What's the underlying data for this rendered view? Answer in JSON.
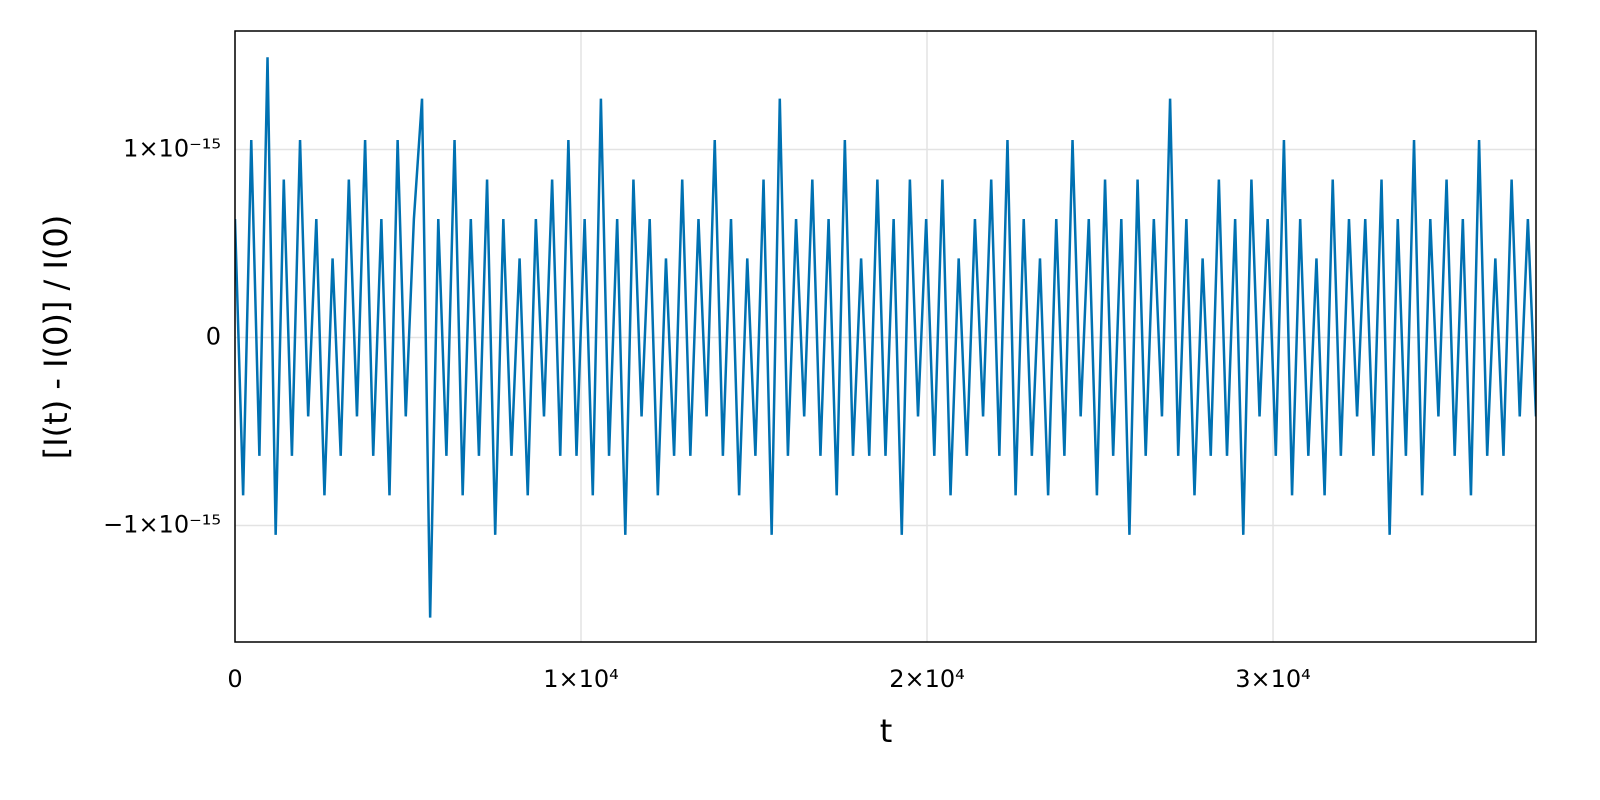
{
  "chart_data": {
    "type": "line",
    "xlabel": "t",
    "ylabel": "[I(t) - I(0)] / I(0)",
    "xlim": [
      0,
      37600
    ],
    "ylim": [
      -1.62e-15,
      1.63e-15
    ],
    "xticks": [
      0,
      {
        "value": 10000,
        "label": "1×10⁴"
      },
      {
        "value": 20000,
        "label": "2×10⁴"
      },
      {
        "value": 30000,
        "label": "3×10⁴"
      }
    ],
    "yticks": [
      {
        "value": -1e-15,
        "label": "−1×10⁻¹⁵"
      },
      0,
      {
        "value": 1e-15,
        "label": "1×10⁻¹⁵"
      }
    ],
    "grid": true,
    "x": [
      0,
      235,
      470,
      705,
      940,
      1175,
      1410,
      1645,
      1880,
      2115,
      2350,
      2585,
      2820,
      3055,
      3290,
      3525,
      3760,
      3995,
      4230,
      4465,
      4700,
      4935,
      5170,
      5405,
      5640,
      5875,
      6110,
      6345,
      6580,
      6815,
      7050,
      7285,
      7520,
      7755,
      7990,
      8225,
      8460,
      8695,
      8930,
      9165,
      9400,
      9635,
      9870,
      10105,
      10340,
      10575,
      10810,
      11045,
      11280,
      11515,
      11750,
      11985,
      12220,
      12455,
      12690,
      12925,
      13160,
      13395,
      13630,
      13865,
      14100,
      14335,
      14570,
      14805,
      15040,
      15275,
      15510,
      15745,
      15980,
      16215,
      16450,
      16685,
      16920,
      17155,
      17390,
      17625,
      17860,
      18095,
      18330,
      18565,
      18800,
      19035,
      19270,
      19505,
      19740,
      19975,
      20210,
      20445,
      20680,
      20915,
      21150,
      21385,
      21620,
      21855,
      22090,
      22325,
      22560,
      22795,
      23030,
      23265,
      23500,
      23735,
      23970,
      24205,
      24440,
      24675,
      24910,
      25145,
      25380,
      25615,
      25850,
      26085,
      26320,
      26555,
      26790,
      27025,
      27260,
      27495,
      27730,
      27965,
      28200,
      28435,
      28670,
      28905,
      29140,
      29375,
      29610,
      29845,
      30080,
      30315,
      30550,
      30785,
      31020,
      31255,
      31490,
      31725,
      31960,
      32195,
      32430,
      32665,
      32900,
      33135,
      33370,
      33605,
      33840,
      34075,
      34310,
      34545,
      34780,
      35015,
      35250,
      35485,
      35720,
      35955,
      36190,
      36425,
      36660,
      36895,
      37130,
      37365,
      37600
    ],
    "series": [
      {
        "color": "#0071b2",
        "values": [
          6.3e-16,
          -8.4e-16,
          1.05e-15,
          -6.3e-16,
          1.49e-15,
          -1.05e-15,
          8.4e-16,
          -6.3e-16,
          1.05e-15,
          -4.2e-16,
          6.3e-16,
          -8.4e-16,
          4.2e-16,
          -6.3e-16,
          8.4e-16,
          -4.2e-16,
          1.05e-15,
          -6.3e-16,
          6.3e-16,
          -8.4e-16,
          1.05e-15,
          -4.2e-16,
          6.3e-16,
          1.27e-15,
          -1.49e-15,
          6.3e-16,
          -6.3e-16,
          1.05e-15,
          -8.4e-16,
          6.3e-16,
          -6.3e-16,
          8.4e-16,
          -1.05e-15,
          6.3e-16,
          -6.3e-16,
          4.2e-16,
          -8.4e-16,
          6.3e-16,
          -4.2e-16,
          8.4e-16,
          -6.3e-16,
          1.05e-15,
          -6.3e-16,
          6.3e-16,
          -8.4e-16,
          1.27e-15,
          -6.3e-16,
          6.3e-16,
          -1.05e-15,
          8.4e-16,
          -4.2e-16,
          6.3e-16,
          -8.4e-16,
          4.2e-16,
          -6.3e-16,
          8.4e-16,
          -6.3e-16,
          6.3e-16,
          -4.2e-16,
          1.05e-15,
          -6.3e-16,
          6.3e-16,
          -8.4e-16,
          4.2e-16,
          -6.3e-16,
          8.4e-16,
          -1.05e-15,
          1.27e-15,
          -6.3e-16,
          6.3e-16,
          -4.2e-16,
          8.4e-16,
          -6.3e-16,
          6.3e-16,
          -8.4e-16,
          1.05e-15,
          -6.3e-16,
          4.2e-16,
          -6.3e-16,
          8.4e-16,
          -6.3e-16,
          6.3e-16,
          -1.05e-15,
          8.4e-16,
          -4.2e-16,
          6.3e-16,
          -6.3e-16,
          8.4e-16,
          -8.4e-16,
          4.2e-16,
          -6.3e-16,
          6.3e-16,
          -4.2e-16,
          8.4e-16,
          -6.3e-16,
          1.05e-15,
          -8.4e-16,
          6.3e-16,
          -6.3e-16,
          4.2e-16,
          -8.4e-16,
          6.3e-16,
          -6.3e-16,
          1.05e-15,
          -4.2e-16,
          6.3e-16,
          -8.4e-16,
          8.4e-16,
          -6.3e-16,
          6.3e-16,
          -1.05e-15,
          8.4e-16,
          -6.3e-16,
          6.3e-16,
          -4.2e-16,
          1.27e-15,
          -6.3e-16,
          6.3e-16,
          -8.4e-16,
          4.2e-16,
          -6.3e-16,
          8.4e-16,
          -6.3e-16,
          6.3e-16,
          -1.05e-15,
          8.4e-16,
          -4.2e-16,
          6.3e-16,
          -6.3e-16,
          1.05e-15,
          -8.4e-16,
          6.3e-16,
          -6.3e-16,
          4.2e-16,
          -8.4e-16,
          8.4e-16,
          -6.3e-16,
          6.3e-16,
          -4.2e-16,
          6.3e-16,
          -6.3e-16,
          8.4e-16,
          -1.05e-15,
          6.3e-16,
          -6.3e-16,
          1.05e-15,
          -8.4e-16,
          6.3e-16,
          -4.2e-16,
          8.4e-16,
          -6.3e-16,
          6.3e-16,
          -8.4e-16,
          1.05e-15,
          -6.3e-16,
          4.2e-16,
          -6.3e-16,
          8.4e-16,
          -4.2e-16,
          6.3e-16,
          -4.2e-16
        ]
      }
    ]
  }
}
